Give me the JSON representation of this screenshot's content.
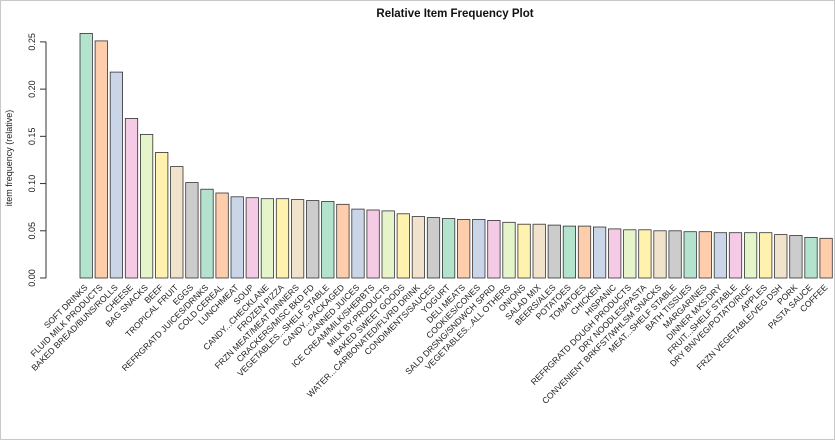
{
  "chart_data": {
    "type": "bar",
    "title": "Relative Item Frequency Plot",
    "xlabel": "",
    "ylabel": "item frequency (relative)",
    "ylim": [
      0,
      0.27
    ],
    "yticks": [
      "0.00",
      "0.05",
      "0.10",
      "0.15",
      "0.20",
      "0.25"
    ],
    "ytick_values": [
      0,
      0.05,
      0.1,
      0.15,
      0.2,
      0.25
    ],
    "grid": false,
    "palette": [
      "#b3e2cd",
      "#fdcdac",
      "#cbd5e8",
      "#f4cae4",
      "#e6f5c9",
      "#fff2ae",
      "#f1e2cc",
      "#cccccc"
    ],
    "categories": [
      "SOFT DRINKS",
      "FLUID MILK PRODUCTS",
      "BAKED BREAD/BUNS/ROLLS",
      "CHEESE",
      "BAG SNACKS",
      "BEEF",
      "TROPICAL FRUIT",
      "EGGS",
      "REFRGRATD JUICES/DRNKS",
      "COLD CEREAL",
      "LUNCHMEAT",
      "SOUP",
      "CANDY - CHECKLANE",
      "FROZEN PIZZA",
      "FRZN MEAT/MEAT DINNERS",
      "CRACKERS/MISC BKD FD",
      "VEGETABLES - SHELF STABLE",
      "CANDY - PACKAGED",
      "CANNED JUICES",
      "ICE CREAM/MILK/SHERBTS",
      "MILK BY-PRODUCTS",
      "BAKED SWEET GOODS",
      "WATER - CARBONATED/FLVRD DRINK",
      "CONDIMENTS/SAUCES",
      "YOGURT",
      "DELI MEATS",
      "COOKIES/CONES",
      "SALD DRSNG/SNDWCH SPRD",
      "VEGETABLES - ALL OTHERS",
      "ONIONS",
      "SALAD MIX",
      "BEERS/ALES",
      "POTATOES",
      "TOMATOES",
      "CHICKEN",
      "HISPANIC",
      "REFRGRATD DOUGH PRODUCTS",
      "DRY NOODLES/PASTA",
      "CONVENIENT BRKFST/WHLSM SNACKS",
      "MEAT - SHELF STABLE",
      "BATH TISSUES",
      "MARGARINES",
      "DINNER MXS:DRY",
      "FRUIT - SHELF STABLE",
      "DRY BN/VEG/POTATO/RICE",
      "APPLES",
      "FRZN VEGETABLE/VEG DSH",
      "PORK",
      "PASTA SAUCE",
      "COFFEE"
    ],
    "display_labels": [
      "SOFT DRINKS",
      "FLUID MILK PRODUCTS",
      "BAKED BREAD/BUNS/ROLLS",
      "CHEESE",
      "BAG SNACKS",
      "BEEF",
      "TROPICAL FRUIT",
      "EGGS",
      "REFRGRATD JUICES/DRNKS",
      "COLD CEREAL",
      "LUNCHMEAT",
      "SOUP",
      "CANDY...CHECKLANE",
      "FROZEN PIZZA",
      "FRZN MEAT/MEAT DINNERS",
      "CRACKERS/MISC BKD FD",
      "VEGETABLES...SHELF STABLE",
      "CANDY...PACKAGED",
      "CANNED JUICES",
      "ICE CREAM/MILK/SHERBTS",
      "MILK BY-PRODUCTS",
      "BAKED SWEET GOODS",
      "WATER...CARBONATED/FLVRD DRINK",
      "CONDIMENTS/SAUCES",
      "YOGURT",
      "DELI MEATS",
      "COOKIES/CONES",
      "SALD DRSNG/SNDWCH SPRD",
      "VEGETABLES...ALL OTHERS",
      "ONIONS",
      "SALAD MIX",
      "BEERS/ALES",
      "POTATOES",
      "TOMATOES",
      "CHICKEN",
      "HISPANIC",
      "REFRGRATD DOUGH PRODUCTS",
      "DRY NOODLES/PASTA",
      "CONVENIENT BRKFST/WHLSM SNACKS",
      "MEAT...SHELF STABLE",
      "BATH TISSUES",
      "MARGARINES",
      "DINNER MXS:DRY",
      "FRUIT...SHELF STABLE",
      "DRY BN/VEG/POTATO/RICE",
      "APPLES",
      "FRZN VEGETABLE/VEG DSH",
      "PORK",
      "PASTA SAUCE",
      "COFFEE"
    ],
    "values": [
      0.259,
      0.251,
      0.218,
      0.169,
      0.152,
      0.133,
      0.118,
      0.101,
      0.094,
      0.09,
      0.086,
      0.085,
      0.084,
      0.084,
      0.083,
      0.082,
      0.081,
      0.078,
      0.073,
      0.072,
      0.071,
      0.068,
      0.065,
      0.064,
      0.063,
      0.062,
      0.062,
      0.061,
      0.059,
      0.057,
      0.057,
      0.056,
      0.055,
      0.055,
      0.054,
      0.052,
      0.051,
      0.051,
      0.05,
      0.05,
      0.049,
      0.049,
      0.048,
      0.048,
      0.048,
      0.048,
      0.046,
      0.045,
      0.043,
      0.042
    ]
  }
}
